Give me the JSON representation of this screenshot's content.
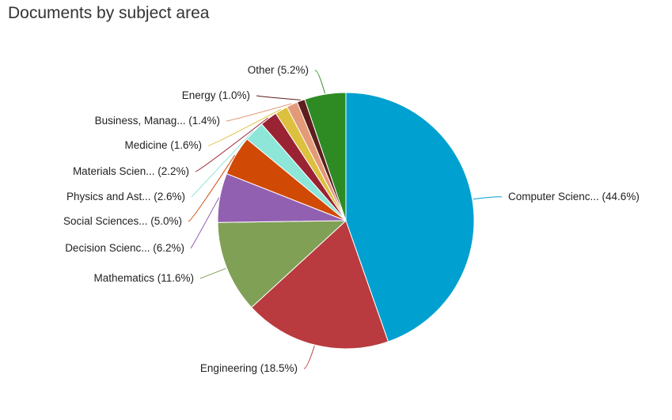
{
  "title": "Documents by subject area",
  "chart_data": {
    "type": "pie",
    "title": "Documents by subject area",
    "start_angle_deg": 0,
    "direction": "clockwise",
    "slices": [
      {
        "label": "Computer Scienc... (44.6%)",
        "name": "Computer Scienc...",
        "value": 44.6,
        "color": "#00a0d0"
      },
      {
        "label": "Engineering (18.5%)",
        "name": "Engineering",
        "value": 18.5,
        "color": "#b93a3f"
      },
      {
        "label": "Mathematics (11.6%)",
        "name": "Mathematics",
        "value": 11.6,
        "color": "#7fa055"
      },
      {
        "label": "Decision Scienc... (6.2%)",
        "name": "Decision Scienc...",
        "value": 6.2,
        "color": "#9260b0"
      },
      {
        "label": "Social Sciences... (5.0%)",
        "name": "Social Sciences...",
        "value": 5.0,
        "color": "#d04a06"
      },
      {
        "label": "Physics and Ast... (2.6%)",
        "name": "Physics and Ast...",
        "value": 2.6,
        "color": "#8de6d8"
      },
      {
        "label": "Materials Scien... (2.2%)",
        "name": "Materials Scien...",
        "value": 2.2,
        "color": "#9a2333"
      },
      {
        "label": "Medicine (1.6%)",
        "name": "Medicine",
        "value": 1.6,
        "color": "#dcc03e"
      },
      {
        "label": "Business, Manag... (1.4%)",
        "name": "Business, Manag...",
        "value": 1.4,
        "color": "#e39a78"
      },
      {
        "label": "Energy (1.0%)",
        "name": "Energy",
        "value": 1.0,
        "color": "#5e1e1e"
      },
      {
        "label": "Other (5.2%)",
        "name": "Other",
        "value": 5.2,
        "color": "#2e8b24"
      }
    ]
  }
}
